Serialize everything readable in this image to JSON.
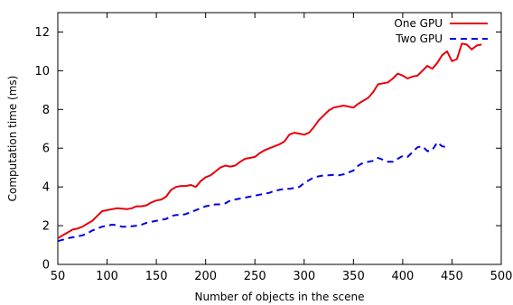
{
  "chart_data": {
    "type": "line",
    "xlabel": "Number of objects in the scene",
    "ylabel": "Computation time (ms)",
    "xlim": [
      50,
      500
    ],
    "ylim": [
      0,
      13
    ],
    "xticks": [
      50,
      100,
      150,
      200,
      250,
      300,
      350,
      400,
      450,
      500
    ],
    "yticks": [
      0,
      2,
      4,
      6,
      8,
      10,
      12
    ],
    "grid": false,
    "legend_position": "top-right",
    "series": [
      {
        "name": "One GPU",
        "color": "#e8000b",
        "dash": "solid",
        "points": [
          [
            50,
            1.35
          ],
          [
            55,
            1.5
          ],
          [
            60,
            1.65
          ],
          [
            65,
            1.8
          ],
          [
            70,
            1.85
          ],
          [
            75,
            1.95
          ],
          [
            80,
            2.1
          ],
          [
            85,
            2.25
          ],
          [
            90,
            2.5
          ],
          [
            95,
            2.75
          ],
          [
            100,
            2.8
          ],
          [
            105,
            2.85
          ],
          [
            110,
            2.9
          ],
          [
            115,
            2.88
          ],
          [
            120,
            2.85
          ],
          [
            125,
            2.9
          ],
          [
            130,
            3.0
          ],
          [
            135,
            3.0
          ],
          [
            140,
            3.05
          ],
          [
            145,
            3.2
          ],
          [
            150,
            3.3
          ],
          [
            155,
            3.35
          ],
          [
            160,
            3.5
          ],
          [
            165,
            3.85
          ],
          [
            170,
            4.0
          ],
          [
            175,
            4.05
          ],
          [
            180,
            4.05
          ],
          [
            185,
            4.1
          ],
          [
            190,
            4.0
          ],
          [
            195,
            4.3
          ],
          [
            200,
            4.5
          ],
          [
            205,
            4.6
          ],
          [
            210,
            4.8
          ],
          [
            215,
            5.0
          ],
          [
            220,
            5.1
          ],
          [
            225,
            5.05
          ],
          [
            230,
            5.1
          ],
          [
            235,
            5.3
          ],
          [
            240,
            5.45
          ],
          [
            245,
            5.5
          ],
          [
            250,
            5.55
          ],
          [
            255,
            5.75
          ],
          [
            260,
            5.9
          ],
          [
            265,
            6.0
          ],
          [
            270,
            6.1
          ],
          [
            275,
            6.2
          ],
          [
            280,
            6.35
          ],
          [
            285,
            6.7
          ],
          [
            290,
            6.8
          ],
          [
            295,
            6.75
          ],
          [
            300,
            6.7
          ],
          [
            305,
            6.8
          ],
          [
            310,
            7.1
          ],
          [
            315,
            7.45
          ],
          [
            320,
            7.7
          ],
          [
            325,
            7.95
          ],
          [
            330,
            8.1
          ],
          [
            335,
            8.15
          ],
          [
            340,
            8.2
          ],
          [
            345,
            8.15
          ],
          [
            350,
            8.1
          ],
          [
            355,
            8.3
          ],
          [
            360,
            8.45
          ],
          [
            365,
            8.6
          ],
          [
            370,
            8.9
          ],
          [
            375,
            9.3
          ],
          [
            380,
            9.35
          ],
          [
            385,
            9.4
          ],
          [
            390,
            9.6
          ],
          [
            395,
            9.85
          ],
          [
            400,
            9.75
          ],
          [
            405,
            9.6
          ],
          [
            410,
            9.7
          ],
          [
            415,
            9.75
          ],
          [
            420,
            10.0
          ],
          [
            425,
            10.25
          ],
          [
            430,
            10.1
          ],
          [
            435,
            10.4
          ],
          [
            440,
            10.8
          ],
          [
            445,
            11.0
          ],
          [
            450,
            10.5
          ],
          [
            455,
            10.6
          ],
          [
            460,
            11.4
          ],
          [
            465,
            11.35
          ],
          [
            470,
            11.1
          ],
          [
            475,
            11.3
          ],
          [
            480,
            11.35
          ]
        ]
      },
      {
        "name": "Two GPU",
        "color": "#0000e6",
        "dash": "dashed",
        "points": [
          [
            50,
            1.2
          ],
          [
            55,
            1.27
          ],
          [
            60,
            1.35
          ],
          [
            65,
            1.4
          ],
          [
            70,
            1.45
          ],
          [
            75,
            1.5
          ],
          [
            80,
            1.6
          ],
          [
            85,
            1.75
          ],
          [
            90,
            1.85
          ],
          [
            95,
            1.95
          ],
          [
            100,
            2.0
          ],
          [
            105,
            2.05
          ],
          [
            110,
            2.02
          ],
          [
            115,
            1.95
          ],
          [
            120,
            1.95
          ],
          [
            125,
            1.97
          ],
          [
            130,
            2.0
          ],
          [
            135,
            2.05
          ],
          [
            140,
            2.15
          ],
          [
            145,
            2.2
          ],
          [
            150,
            2.25
          ],
          [
            155,
            2.3
          ],
          [
            160,
            2.35
          ],
          [
            165,
            2.5
          ],
          [
            170,
            2.55
          ],
          [
            175,
            2.55
          ],
          [
            180,
            2.6
          ],
          [
            185,
            2.7
          ],
          [
            190,
            2.8
          ],
          [
            195,
            2.9
          ],
          [
            200,
            3.0
          ],
          [
            205,
            3.05
          ],
          [
            210,
            3.1
          ],
          [
            215,
            3.1
          ],
          [
            220,
            3.15
          ],
          [
            225,
            3.3
          ],
          [
            230,
            3.35
          ],
          [
            235,
            3.4
          ],
          [
            240,
            3.45
          ],
          [
            245,
            3.5
          ],
          [
            250,
            3.55
          ],
          [
            255,
            3.6
          ],
          [
            260,
            3.65
          ],
          [
            265,
            3.7
          ],
          [
            270,
            3.8
          ],
          [
            275,
            3.85
          ],
          [
            280,
            3.9
          ],
          [
            285,
            3.9
          ],
          [
            290,
            3.95
          ],
          [
            295,
            4.0
          ],
          [
            300,
            4.2
          ],
          [
            305,
            4.35
          ],
          [
            310,
            4.5
          ],
          [
            315,
            4.55
          ],
          [
            320,
            4.6
          ],
          [
            325,
            4.6
          ],
          [
            330,
            4.62
          ],
          [
            335,
            4.6
          ],
          [
            340,
            4.65
          ],
          [
            345,
            4.75
          ],
          [
            350,
            4.85
          ],
          [
            355,
            5.1
          ],
          [
            360,
            5.25
          ],
          [
            365,
            5.3
          ],
          [
            370,
            5.35
          ],
          [
            375,
            5.5
          ],
          [
            380,
            5.4
          ],
          [
            385,
            5.3
          ],
          [
            390,
            5.3
          ],
          [
            395,
            5.45
          ],
          [
            400,
            5.6
          ],
          [
            405,
            5.55
          ],
          [
            410,
            5.8
          ],
          [
            415,
            6.05
          ],
          [
            420,
            6.1
          ],
          [
            425,
            5.85
          ],
          [
            430,
            5.9
          ],
          [
            435,
            6.3
          ],
          [
            440,
            6.1
          ],
          [
            445,
            6.05
          ]
        ]
      }
    ]
  }
}
